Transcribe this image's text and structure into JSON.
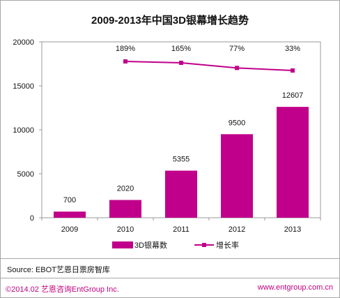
{
  "chart_data": {
    "type": "bar",
    "title": "2009-2013年中国3D银幕增长趋势",
    "categories": [
      "2009",
      "2010",
      "2011",
      "2012",
      "2013"
    ],
    "series": [
      {
        "name": "3D银幕数",
        "kind": "bar",
        "values": [
          700,
          2020,
          5355,
          9500,
          12607
        ],
        "color": "#c0008a"
      },
      {
        "name": "增长率",
        "kind": "line",
        "values": [
          null,
          189,
          165,
          77,
          33
        ],
        "labels": [
          "",
          "189%",
          "165%",
          "77%",
          "33%"
        ],
        "color": "#c0008a"
      }
    ],
    "yticks": [
      "0",
      "5000",
      "10000",
      "15000",
      "20000"
    ],
    "ylim": [
      0,
      20000
    ],
    "legend_position": "bottom",
    "grid": false
  },
  "source": "Source: EBOT艺恩日票房智库",
  "footer": {
    "copyright": "©2014.02  艺恩咨询EntGroup Inc.",
    "website": "www.entgroup.com.cn"
  }
}
